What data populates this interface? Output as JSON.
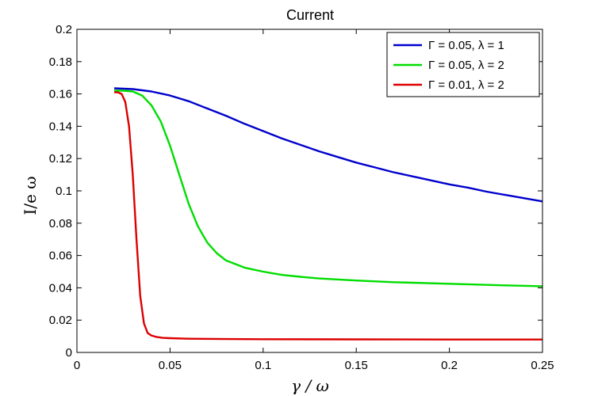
{
  "chart_data": {
    "type": "line",
    "title": "Current",
    "xlabel": "γ / ω",
    "ylabel": "I/e ω",
    "xlim": [
      0,
      0.25
    ],
    "ylim": [
      0,
      0.2
    ],
    "xticks": [
      0,
      0.05,
      0.1,
      0.15,
      0.2,
      0.25
    ],
    "xtick_labels": [
      "0",
      "0.05",
      "0.1",
      "0.15",
      "0.2",
      "0.25"
    ],
    "yticks": [
      0,
      0.02,
      0.04,
      0.06,
      0.08,
      0.1,
      0.12,
      0.14,
      0.16,
      0.18,
      0.2
    ],
    "ytick_labels": [
      "0",
      "0.02",
      "0.04",
      "0.06",
      "0.08",
      "0.1",
      "0.12",
      "0.14",
      "0.16",
      "0.18",
      "0.2"
    ],
    "grid": false,
    "legend_position": "top-right",
    "series": [
      {
        "name": "Γ = 0.05, λ = 1",
        "color": "#0000cc",
        "x": [
          0.02,
          0.03,
          0.04,
          0.05,
          0.06,
          0.07,
          0.08,
          0.09,
          0.1,
          0.11,
          0.12,
          0.13,
          0.14,
          0.15,
          0.16,
          0.17,
          0.18,
          0.19,
          0.2,
          0.21,
          0.22,
          0.23,
          0.24,
          0.25
        ],
        "y": [
          0.1635,
          0.163,
          0.1615,
          0.159,
          0.1555,
          0.151,
          0.1465,
          0.1415,
          0.137,
          0.1325,
          0.1285,
          0.1245,
          0.121,
          0.1175,
          0.1145,
          0.1115,
          0.109,
          0.1065,
          0.104,
          0.102,
          0.0995,
          0.0975,
          0.0955,
          0.0935
        ]
      },
      {
        "name": "Γ = 0.05, λ = 2",
        "color": "#00dd00",
        "x": [
          0.02,
          0.025,
          0.03,
          0.035,
          0.04,
          0.045,
          0.05,
          0.055,
          0.06,
          0.065,
          0.07,
          0.075,
          0.08,
          0.09,
          0.1,
          0.11,
          0.12,
          0.13,
          0.15,
          0.17,
          0.2,
          0.23,
          0.25
        ],
        "y": [
          0.162,
          0.162,
          0.1615,
          0.159,
          0.153,
          0.143,
          0.128,
          0.11,
          0.092,
          0.078,
          0.068,
          0.0615,
          0.057,
          0.0525,
          0.05,
          0.048,
          0.0468,
          0.0458,
          0.0445,
          0.0435,
          0.0425,
          0.0415,
          0.041
        ]
      },
      {
        "name": "Γ = 0.01, λ = 2",
        "color": "#dd0000",
        "x": [
          0.02,
          0.022,
          0.024,
          0.026,
          0.028,
          0.03,
          0.032,
          0.034,
          0.036,
          0.038,
          0.04,
          0.043,
          0.046,
          0.05,
          0.06,
          0.08,
          0.1,
          0.15,
          0.2,
          0.25
        ],
        "y": [
          0.161,
          0.161,
          0.16,
          0.155,
          0.14,
          0.11,
          0.07,
          0.035,
          0.018,
          0.012,
          0.0105,
          0.0095,
          0.009,
          0.0088,
          0.0085,
          0.0083,
          0.0082,
          0.0081,
          0.008,
          0.008
        ]
      }
    ]
  }
}
